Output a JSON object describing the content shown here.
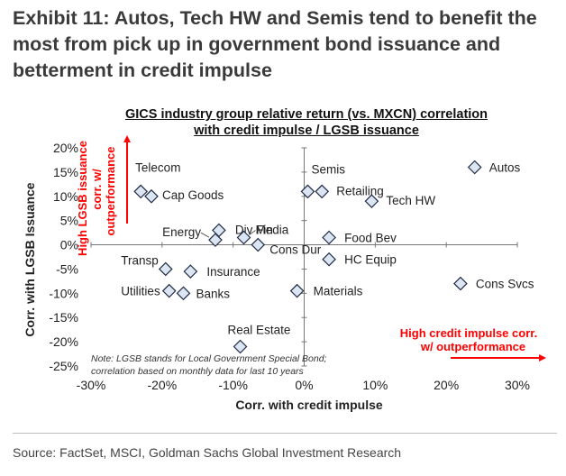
{
  "exhibit": {
    "title_lines": [
      "Exhibit 11: Autos, Tech HW and Semis tend to benefit the",
      "most from pick up in government bond issuance and",
      "betterment in credit impulse"
    ]
  },
  "source": "Source: FactSet, MSCI, Goldman Sachs Global Investment Research",
  "chart_data": {
    "type": "scatter",
    "title_lines": [
      "GICS industry group relative return (vs. MXCN) correlation",
      "with credit impulse / LGSB issuance"
    ],
    "xlabel": "Corr. with credit impulse",
    "ylabel": "Corr. with LGSB Issuance",
    "xlim": [
      -30,
      30
    ],
    "ylim": [
      -25,
      20
    ],
    "xticks": [
      -30,
      -20,
      -10,
      0,
      10,
      20,
      30
    ],
    "yticks": [
      20,
      15,
      10,
      5,
      0,
      -5,
      -10,
      -15,
      -20,
      -25
    ],
    "tick_suffix": "%",
    "points": [
      {
        "name": "Autos",
        "x": 24,
        "y": 16
      },
      {
        "name": "Telecom",
        "x": -23,
        "y": 11
      },
      {
        "name": "Cap Goods",
        "x": -21.5,
        "y": 10
      },
      {
        "name": "Semis",
        "x": 0.5,
        "y": 11
      },
      {
        "name": "Retailing",
        "x": 2.5,
        "y": 11
      },
      {
        "name": "Tech HW",
        "x": 9.5,
        "y": 9
      },
      {
        "name": "Div Fin",
        "x": -12,
        "y": 3
      },
      {
        "name": "Energy",
        "x": -12.5,
        "y": 1
      },
      {
        "name": "Media",
        "x": -8.5,
        "y": 1.5
      },
      {
        "name": "Cons Dur",
        "x": -6.5,
        "y": 0
      },
      {
        "name": "Food Bev",
        "x": 3.5,
        "y": 1.5
      },
      {
        "name": "HC Equip",
        "x": 3.5,
        "y": -3
      },
      {
        "name": "Transp",
        "x": -19.5,
        "y": -5
      },
      {
        "name": "Insurance",
        "x": -16,
        "y": -5.5
      },
      {
        "name": "Utilities",
        "x": -19,
        "y": -9.5
      },
      {
        "name": "Banks",
        "x": -17,
        "y": -10
      },
      {
        "name": "Materials",
        "x": -1,
        "y": -9.5
      },
      {
        "name": "Cons Svcs",
        "x": 22,
        "y": -8
      },
      {
        "name": "Real Estate",
        "x": -9,
        "y": -21
      }
    ],
    "annotations": {
      "y_arrow_lines": [
        "High LGSB issuance",
        "corr. w/",
        "outperformance"
      ],
      "x_arrow_lines": [
        "High credit impulse corr.",
        "w/ outperformance"
      ],
      "note_lines": [
        "Note: LGSB stands for Local Government Special Bond;",
        "correlation based on monthly data for last 10 years"
      ]
    },
    "colors": {
      "marker_fill": "#dce6f2",
      "marker_stroke": "#1f2a44",
      "accent": "#ff0000"
    }
  }
}
